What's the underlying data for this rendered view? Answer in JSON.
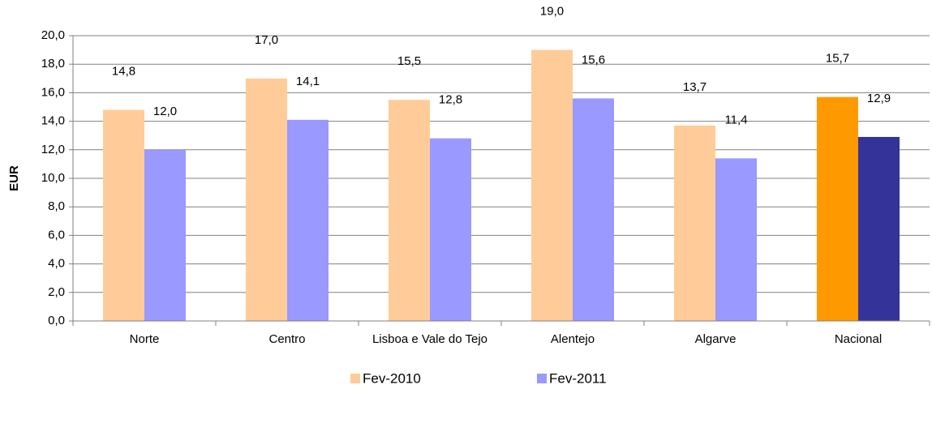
{
  "chart_data": {
    "type": "bar",
    "y_label": "EUR",
    "categories": [
      "Norte",
      "Centro",
      "Lisboa e Vale do Tejo",
      "Alentejo",
      "Algarve",
      "Nacional"
    ],
    "series": [
      {
        "name": "Fev-2010",
        "color": "#ffcc99",
        "colors": [
          "#ffcc99",
          "#ffcc99",
          "#ffcc99",
          "#ffcc99",
          "#ffcc99",
          "#ff9900"
        ],
        "values": [
          14.8,
          17.0,
          15.5,
          19.0,
          13.7,
          15.7
        ],
        "value_labels": [
          "14,8",
          "17,0",
          "15,5",
          "19,0",
          "13,7",
          "15,7"
        ]
      },
      {
        "name": "Fev-2011",
        "color": "#9999ff",
        "colors": [
          "#9999ff",
          "#9999ff",
          "#9999ff",
          "#9999ff",
          "#9999ff",
          "#333399"
        ],
        "values": [
          12.0,
          14.1,
          12.8,
          15.6,
          11.4,
          12.9
        ],
        "value_labels": [
          "12,0",
          "14,1",
          "12,8",
          "15,6",
          "11,4",
          "12,9"
        ]
      }
    ],
    "ylim": [
      0,
      20
    ],
    "yticks": [
      {
        "value": 0,
        "label": "0,0"
      },
      {
        "value": 2,
        "label": "2,0"
      },
      {
        "value": 4,
        "label": "4,0"
      },
      {
        "value": 6,
        "label": "6,0"
      },
      {
        "value": 8,
        "label": "8,0"
      },
      {
        "value": 10,
        "label": "10,0"
      },
      {
        "value": 12,
        "label": "12,0"
      },
      {
        "value": 14,
        "label": "14,0"
      },
      {
        "value": 16,
        "label": "16,0"
      },
      {
        "value": 18,
        "label": "18,0"
      },
      {
        "value": 20,
        "label": "20,0"
      }
    ],
    "grid": true,
    "legend": "bottom"
  }
}
